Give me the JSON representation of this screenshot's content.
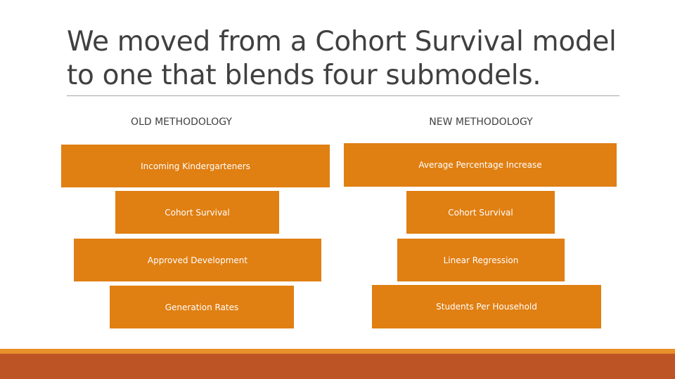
{
  "slide": {
    "title_line1": "We moved from a Cohort Survival model",
    "title_line2": "to one that blends four submodels."
  },
  "old_methodology": {
    "heading": "OLD METHODOLOGY",
    "items": [
      "Incoming Kindergarteners",
      "Cohort Survival",
      "Approved Development",
      "Generation Rates"
    ]
  },
  "new_methodology": {
    "heading": "NEW METHODOLOGY",
    "items": [
      "Average Percentage Increase",
      "Cohort Survival",
      "Linear Regression",
      "Students Per Household"
    ]
  },
  "colors": {
    "box_fill": "#e07f12",
    "footer_thin": "#e8902a",
    "footer_thick": "#bd5426",
    "title_text": "#404040"
  }
}
